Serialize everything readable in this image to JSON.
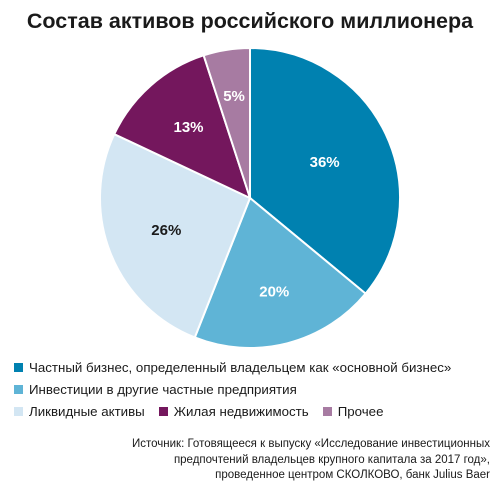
{
  "chart_data": {
    "type": "pie",
    "title": "Состав активов российского миллионера",
    "slices": [
      {
        "name": "Частный бизнес, определенный владельцем как «основной бизнес»",
        "value": 36,
        "label": "36%",
        "color": "#0081b0",
        "label_color": "#ffffff"
      },
      {
        "name": "Инвестиции в другие частные предприятия",
        "value": 20,
        "label": "20%",
        "color": "#5fb4d6",
        "label_color": "#ffffff"
      },
      {
        "name": "Ликвидные активы",
        "value": 26,
        "label": "26%",
        "color": "#d3e6f3",
        "label_color": "#1a1a1a"
      },
      {
        "name": "Жилая недвижимость",
        "value": 13,
        "label": "13%",
        "color": "#74175d",
        "label_color": "#ffffff"
      },
      {
        "name": "Прочее",
        "value": 5,
        "label": "5%",
        "color": "#a77ba2",
        "label_color": "#ffffff"
      }
    ]
  },
  "source": {
    "lines": [
      "Источник: Готовящееся к выпуску «Исследование инвестиционных",
      "предпочтений владельцев крупного капитала за 2017 год»,",
      "проведенное центром СКОЛКОВО, банк Julius Baer"
    ]
  }
}
